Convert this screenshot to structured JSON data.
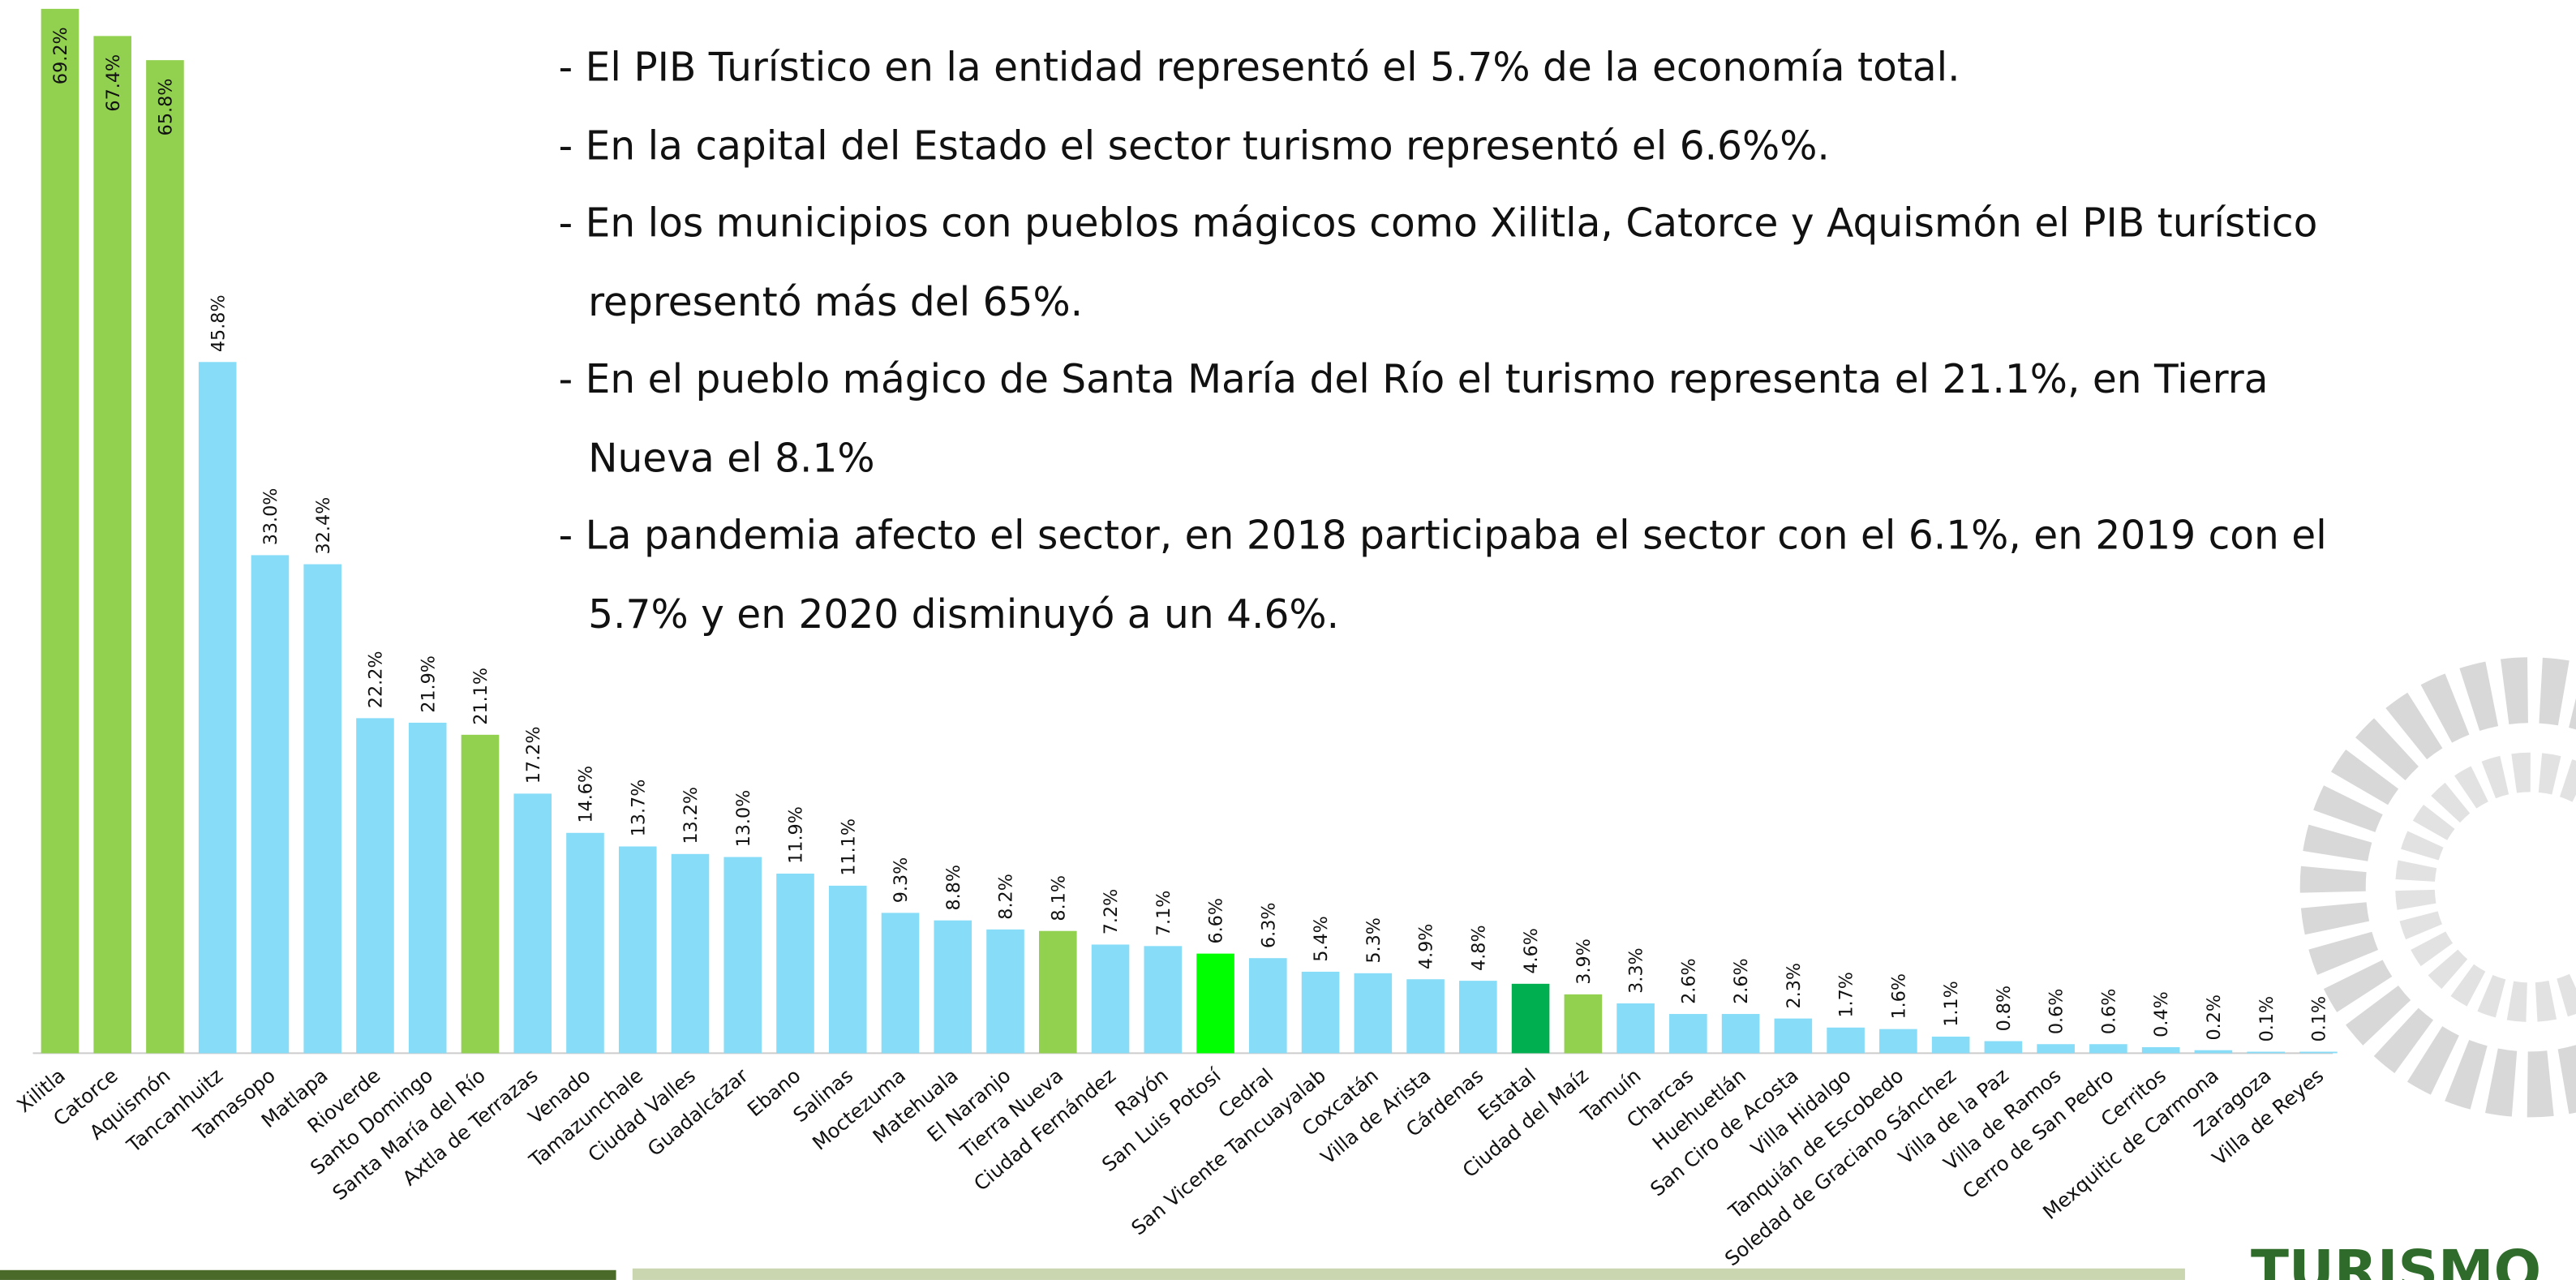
{
  "chart_data": {
    "type": "bar",
    "categories": [
      "Xilitla",
      "Catorce",
      "Aquismón",
      "Tancanhuitz",
      "Tamasopo",
      "Matlapa",
      "Rioverde",
      "Santo Domingo",
      "Santa María del Río",
      "Axtla de Terrazas",
      "Venado",
      "Tamazunchale",
      "Ciudad Valles",
      "Guadalcázar",
      "Ebano",
      "Salinas",
      "Moctezuma",
      "Matehuala",
      "El Naranjo",
      "Tierra Nueva",
      "Ciudad Fernández",
      "Rayón",
      "San Luis Potosí",
      "Cedral",
      "San Vicente Tancuayalab",
      "Coxcatán",
      "Villa de Arista",
      "Cárdenas",
      "Estatal",
      "Ciudad del Maíz",
      "Tamuín",
      "Charcas",
      "Huehuetlán",
      "San Ciro de Acosta",
      "Villa Hidalgo",
      "Tanquián de Escobedo",
      "Soledad de Graciano Sánchez",
      "Villa de la Paz",
      "Villa de Ramos",
      "Cerro de San Pedro",
      "Cerritos",
      "Mexquitic de Carmona",
      "Zaragoza",
      "Villa de Reyes"
    ],
    "values": [
      69.2,
      67.4,
      65.8,
      45.8,
      33.0,
      32.4,
      22.2,
      21.9,
      21.1,
      17.2,
      14.6,
      13.7,
      13.2,
      13.0,
      11.9,
      11.1,
      9.3,
      8.8,
      8.2,
      8.1,
      7.2,
      7.1,
      6.6,
      6.3,
      5.4,
      5.3,
      4.9,
      4.8,
      4.6,
      3.9,
      3.3,
      2.6,
      2.6,
      2.3,
      1.7,
      1.6,
      1.1,
      0.8,
      0.6,
      0.6,
      0.4,
      0.2,
      0.1,
      0.1
    ],
    "value_labels": [
      "69.2%",
      "67.4%",
      "65.8%",
      "45.8%",
      "33.0%",
      "32.4%",
      "22.2%",
      "21.9%",
      "21.1%",
      "17.2%",
      "14.6%",
      "13.7%",
      "13.2%",
      "13.0%",
      "11.9%",
      "11.1%",
      "9.3%",
      "8.8%",
      "8.2%",
      "8.1%",
      "7.2%",
      "7.1%",
      "6.6%",
      "6.3%",
      "5.4%",
      "5.3%",
      "4.9%",
      "4.8%",
      "4.6%",
      "3.9%",
      "3.3%",
      "2.6%",
      "2.6%",
      "2.3%",
      "1.7%",
      "1.6%",
      "1.1%",
      "0.8%",
      "0.6%",
      "0.6%",
      "0.4%",
      "0.2%",
      "0.1%",
      "0.1%"
    ],
    "colors": [
      "#92d050",
      "#92d050",
      "#92d050",
      "#87dcf7",
      "#87dcf7",
      "#87dcf7",
      "#87dcf7",
      "#87dcf7",
      "#92d050",
      "#87dcf7",
      "#87dcf7",
      "#87dcf7",
      "#87dcf7",
      "#87dcf7",
      "#87dcf7",
      "#87dcf7",
      "#87dcf7",
      "#87dcf7",
      "#87dcf7",
      "#92d050",
      "#87dcf7",
      "#87dcf7",
      "#00ff00",
      "#87dcf7",
      "#87dcf7",
      "#87dcf7",
      "#87dcf7",
      "#87dcf7",
      "#00b050",
      "#92d050",
      "#87dcf7",
      "#87dcf7",
      "#87dcf7",
      "#87dcf7",
      "#87dcf7",
      "#87dcf7",
      "#87dcf7",
      "#87dcf7",
      "#87dcf7",
      "#87dcf7",
      "#87dcf7",
      "#87dcf7",
      "#87dcf7",
      "#87dcf7"
    ],
    "ylim": [
      0,
      70
    ],
    "notes": [
      "El PIB Turístico en la entidad representó el 5.7% de la economía total.",
      "En la capital del Estado el sector turismo representó el 6.6%%.",
      "En los municipios con pueblos mágicos como Xilitla, Catorce y Aquismón el PIB turístico representó más del 65%.",
      "En el pueblo mágico de Santa María del Río el turismo representa el 21.1%, en Tierra Nueva el 8.1%",
      "La pandemia afecto el sector, en 2018 participaba el sector con el 6.1%, en 2019 con el 5.7% y en 2020 disminuyó a un 4.6%."
    ],
    "logo": "TURISMO"
  }
}
